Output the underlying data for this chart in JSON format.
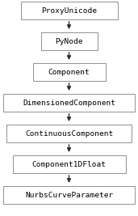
{
  "nodes": [
    "ProxyUnicode",
    "PyNode",
    "Component",
    "DimensionedComponent",
    "ContinuousComponent",
    "Component1DFloat",
    "NurbsCurveParameter"
  ],
  "bg_color": "#ffffff",
  "box_facecolor": "#ffffff",
  "box_edgecolor": "#909090",
  "text_color": "#000000",
  "arrow_color": "#303030",
  "font_size": 6.8,
  "fig_width": 1.71,
  "fig_height": 2.67,
  "dpi": 100
}
